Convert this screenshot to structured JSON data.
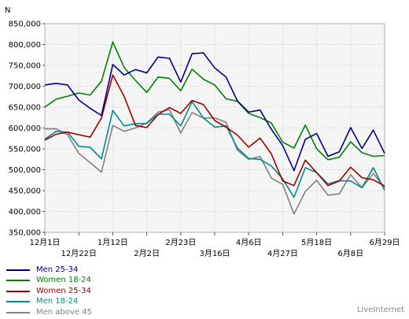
{
  "chart_data": {
    "type": "line",
    "ylabel": "N",
    "ylim": [
      350000,
      850000
    ],
    "y_ticks": [
      "850,000",
      "800,000",
      "750,000",
      "700,000",
      "650,000",
      "600,000",
      "550,000",
      "500,000",
      "450,000",
      "400,000",
      "350,000"
    ],
    "x_tick_labels_row1": [
      "12月1日",
      "1月12日",
      "2月23日",
      "4月6日",
      "5月18日",
      "6月29日"
    ],
    "x_tick_labels_row2": [
      "12月22日",
      "2月2日",
      "3月16日",
      "4月27日",
      "6月8日"
    ],
    "grid": true,
    "legend_position": "bottom-left",
    "x": [
      0,
      1,
      2,
      3,
      4,
      5,
      6,
      7,
      8,
      9,
      10,
      11,
      12,
      13,
      14,
      15,
      16,
      17,
      18,
      19,
      20,
      21,
      22,
      23,
      24,
      25,
      26,
      27,
      28,
      29,
      30
    ],
    "series": [
      {
        "name": "Men 25-34",
        "color": "#000080",
        "values": [
          703000,
          707000,
          703000,
          667000,
          647000,
          630000,
          752000,
          727000,
          740000,
          732000,
          770000,
          767000,
          710000,
          778000,
          780000,
          744000,
          722000,
          665000,
          638000,
          643000,
          597000,
          558000,
          498000,
          573000,
          587000,
          532000,
          543000,
          601000,
          551000,
          595000,
          539000
        ]
      },
      {
        "name": "Women 18-24",
        "color": "#008000",
        "values": [
          650000,
          669000,
          676000,
          684000,
          679000,
          712000,
          806000,
          745000,
          714000,
          685000,
          722000,
          719000,
          689000,
          741000,
          717000,
          703000,
          670000,
          664000,
          635000,
          625000,
          612000,
          566000,
          552000,
          607000,
          550000,
          524000,
          530000,
          567000,
          541000,
          532000,
          534000
        ]
      },
      {
        "name": "Women 25-34",
        "color": "#a00000",
        "values": [
          571000,
          585000,
          590000,
          584000,
          578000,
          624000,
          727000,
          676000,
          606000,
          601000,
          632000,
          649000,
          635000,
          666000,
          656000,
          618000,
          602000,
          583000,
          554000,
          576000,
          538000,
          473000,
          462000,
          523000,
          493000,
          462000,
          473000,
          506000,
          481000,
          476000,
          461000
        ]
      },
      {
        "name": "Men 18-24",
        "color": "#008b8b",
        "values": [
          573000,
          592000,
          590000,
          556000,
          554000,
          526000,
          642000,
          605000,
          610000,
          611000,
          633000,
          633000,
          605000,
          663000,
          624000,
          602000,
          605000,
          552000,
          527000,
          525000,
          509000,
          478000,
          434000,
          505000,
          493000,
          466000,
          474000,
          473000,
          457000,
          505000,
          451000
        ]
      },
      {
        "name": "Men above 45",
        "color": "#808080",
        "values": [
          598000,
          598000,
          584000,
          539000,
          517000,
          494000,
          606000,
          592000,
          600000,
          612000,
          638000,
          644000,
          588000,
          637000,
          624000,
          624000,
          614000,
          547000,
          525000,
          532000,
          480000,
          465000,
          394000,
          448000,
          475000,
          439000,
          442000,
          488000,
          457000,
          491000,
          457000
        ]
      }
    ]
  },
  "credit": "LiveInternet"
}
